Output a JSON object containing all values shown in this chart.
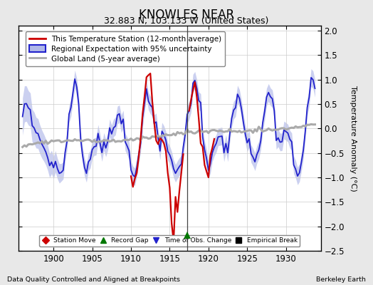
{
  "title": "KNOWLES NEAR",
  "subtitle": "32.883 N, 103.133 W (United States)",
  "xlabel_bottom": "Data Quality Controlled and Aligned at Breakpoints",
  "xlabel_right": "Berkeley Earth",
  "ylabel": "Temperature Anomaly (°C)",
  "xlim": [
    1895.5,
    1934.5
  ],
  "ylim": [
    -2.5,
    2.1
  ],
  "yticks": [
    -2.5,
    -2,
    -1.5,
    -1,
    -0.5,
    0,
    0.5,
    1,
    1.5,
    2
  ],
  "xticks": [
    1900,
    1905,
    1910,
    1915,
    1920,
    1925,
    1930
  ],
  "bg_color": "#e8e8e8",
  "plot_bg_color": "#ffffff",
  "grid_color": "#cccccc",
  "blue_line_color": "#2222cc",
  "blue_fill_color": "#b0b8e8",
  "red_line_color": "#cc0000",
  "gray_line_color": "#aaaaaa",
  "vertical_line_x": 1917.3,
  "record_gap_x": 1917.3,
  "record_gap_y": -2.18,
  "legend_labels": [
    "This Temperature Station (12-month average)",
    "Regional Expectation with 95% uncertainty",
    "Global Land (5-year average)"
  ]
}
